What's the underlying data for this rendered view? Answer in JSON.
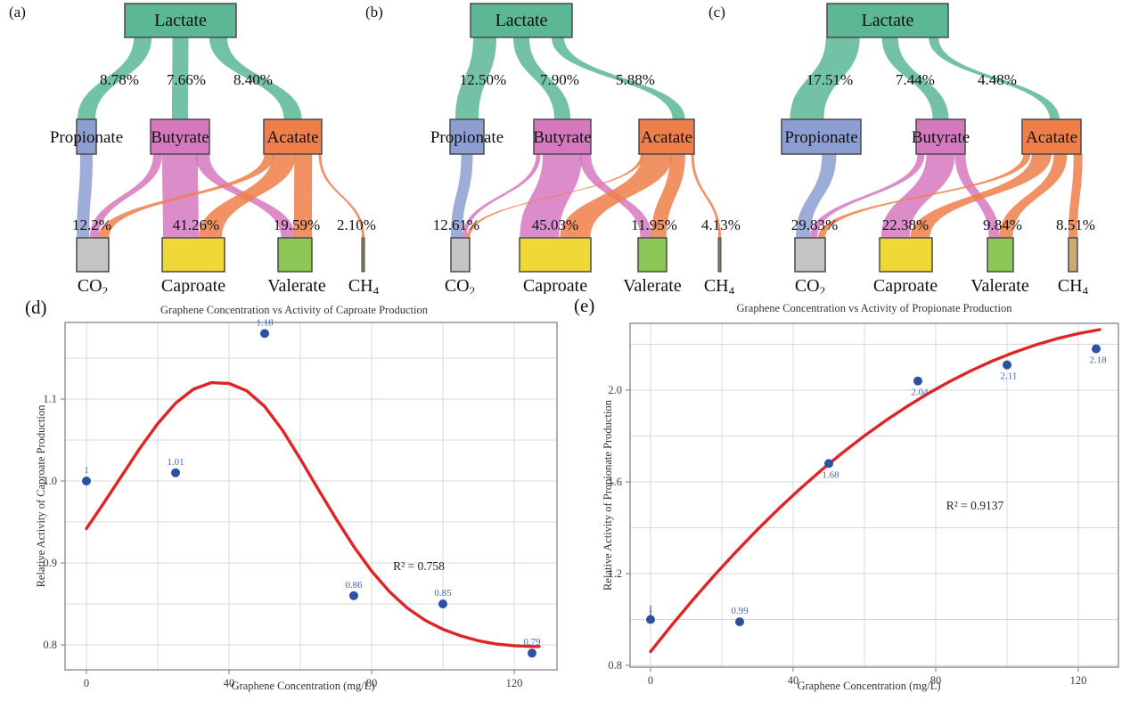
{
  "panel_letters": {
    "a": "(a)",
    "b": "(b)",
    "c": "(c)",
    "d": "(d)",
    "e": "(e)"
  },
  "colors": {
    "lactate": "#5cb795",
    "propionate": "#8d9ed2",
    "butyrate": "#d678be",
    "acetate": "#ef7f4a",
    "co2": "#c4c4c4",
    "caproate": "#f0d838",
    "valerate": "#8cc654",
    "ch4_thin": "#8f7a5c",
    "ch4_wide": "#cfa878",
    "node_border": "#4a4a4a",
    "sankey_text": "#111111",
    "point": "#2b51a3",
    "point_label": "#3f66b0",
    "curve": "#e02424",
    "grid": "#d8d8d8",
    "frame": "#8f8f8f",
    "axis_text": "#3c3c3c",
    "title_text": "#333333"
  },
  "chart_data": [
    {
      "type": "sankey",
      "panel": "(a)",
      "source": "Lactate",
      "middle_nodes": [
        {
          "label": "Propionate",
          "inflow_pct": "8.78%"
        },
        {
          "label": "Butyrate",
          "inflow_pct": "7.66%"
        },
        {
          "label": "Acatate",
          "inflow_pct": "8.40%"
        }
      ],
      "bottom_nodes": [
        {
          "label": "CO",
          "sub": "2",
          "total_pct": "12.2%"
        },
        {
          "label": "Caproate",
          "sub": "",
          "total_pct": "41.26%"
        },
        {
          "label": "Valerate",
          "sub": "",
          "total_pct": "19.59%"
        },
        {
          "label": "CH",
          "sub": "4",
          "total_pct": "2.10%"
        }
      ],
      "links": [
        [
          "Lactate",
          "Propionate"
        ],
        [
          "Lactate",
          "Butyrate"
        ],
        [
          "Lactate",
          "Acatate"
        ],
        [
          "Propionate",
          "CO2"
        ],
        [
          "Butyrate",
          "CO2"
        ],
        [
          "Butyrate",
          "Caproate"
        ],
        [
          "Butyrate",
          "Valerate"
        ],
        [
          "Acatate",
          "CO2"
        ],
        [
          "Acatate",
          "Caproate"
        ],
        [
          "Acatate",
          "Valerate"
        ],
        [
          "Acatate",
          "CH4"
        ]
      ]
    },
    {
      "type": "sankey",
      "panel": "(b)",
      "source": "Lactate",
      "middle_nodes": [
        {
          "label": "Propionate",
          "inflow_pct": "12.50%"
        },
        {
          "label": "Butyrate",
          "inflow_pct": "7.90%"
        },
        {
          "label": "Acatate",
          "inflow_pct": "5.88%"
        }
      ],
      "bottom_nodes": [
        {
          "label": "CO",
          "sub": "2",
          "total_pct": "12.61%"
        },
        {
          "label": "Caproate",
          "sub": "",
          "total_pct": "45.03%"
        },
        {
          "label": "Valerate",
          "sub": "",
          "total_pct": "11.95%"
        },
        {
          "label": "CH",
          "sub": "4",
          "total_pct": "4.13%"
        }
      ],
      "links": [
        [
          "Lactate",
          "Propionate"
        ],
        [
          "Lactate",
          "Butyrate"
        ],
        [
          "Lactate",
          "Acatate"
        ],
        [
          "Propionate",
          "CO2"
        ],
        [
          "Butyrate",
          "CO2"
        ],
        [
          "Butyrate",
          "Caproate"
        ],
        [
          "Butyrate",
          "Valerate"
        ],
        [
          "Acatate",
          "CO2"
        ],
        [
          "Acatate",
          "Caproate"
        ],
        [
          "Acatate",
          "Valerate"
        ],
        [
          "Acatate",
          "CH4"
        ]
      ]
    },
    {
      "type": "sankey",
      "panel": "(c)",
      "source": "Lactate",
      "middle_nodes": [
        {
          "label": "Propionate",
          "inflow_pct": "17.51%"
        },
        {
          "label": "Butyrate",
          "inflow_pct": "7.44%"
        },
        {
          "label": "Acatate",
          "inflow_pct": "4.48%"
        }
      ],
      "bottom_nodes": [
        {
          "label": "CO",
          "sub": "2",
          "total_pct": "29.83%"
        },
        {
          "label": "Caproate",
          "sub": "",
          "total_pct": "22.38%"
        },
        {
          "label": "Valerate",
          "sub": "",
          "total_pct": "9.84%"
        },
        {
          "label": "CH",
          "sub": "4",
          "total_pct": "8.51%"
        }
      ],
      "links": [
        [
          "Lactate",
          "Propionate"
        ],
        [
          "Lactate",
          "Butyrate"
        ],
        [
          "Lactate",
          "Acatate"
        ],
        [
          "Propionate",
          "CO2"
        ],
        [
          "Butyrate",
          "CO2"
        ],
        [
          "Butyrate",
          "Caproate"
        ],
        [
          "Butyrate",
          "Valerate"
        ],
        [
          "Acatate",
          "CO2"
        ],
        [
          "Acatate",
          "Caproate"
        ],
        [
          "Acatate",
          "Valerate"
        ],
        [
          "Acatate",
          "CH4"
        ]
      ]
    },
    {
      "type": "scatter",
      "panel": "(d)",
      "title": "Graphene Concentration vs Activity of Caproate Production",
      "xlabel": "Graphene Concentration (mg/L)",
      "ylabel": "Relative Activity of Caproate Production",
      "x": [
        0,
        25,
        50,
        75,
        100,
        125
      ],
      "y": [
        1,
        1.01,
        1.18,
        0.86,
        0.85,
        0.79
      ],
      "point_labels": [
        "1",
        "1.01",
        "1.18",
        "0.86",
        "0.85",
        "0.79"
      ],
      "annotation": "R² = 0.758",
      "x_ticks": [
        0,
        40,
        80,
        120
      ],
      "x_tick_labels": [
        "0",
        "40",
        "80",
        "120"
      ],
      "y_ticks": [
        0.8,
        0.9,
        1.0,
        1.1
      ],
      "y_tick_labels": [
        "0.8",
        "0.9",
        "1.0",
        "1.1"
      ],
      "xlim": [
        -6,
        133
      ],
      "ylim": [
        0.77,
        1.2
      ],
      "grid": true,
      "fit_curve": "red polynomial fit, peak near x=38 then declining"
    },
    {
      "type": "scatter",
      "panel": "(e)",
      "title": "Graphene Concentration vs Activity of Propionate Production",
      "xlabel": "Graphene Concentration (mg/L)",
      "ylabel": "Relative Activity of Propionate Production",
      "x": [
        0,
        25,
        50,
        75,
        100,
        125
      ],
      "y": [
        1,
        0.99,
        1.68,
        2.04,
        2.11,
        2.18
      ],
      "point_labels": [
        "1",
        "0.99",
        "1.68",
        "2.04",
        "2.11",
        "2.18"
      ],
      "annotation": "R² = 0.9137",
      "x_ticks": [
        0,
        40,
        80,
        120
      ],
      "x_tick_labels": [
        "0",
        "40",
        "80",
        "120"
      ],
      "y_ticks": [
        0.8,
        1.2,
        1.6,
        2.0
      ],
      "y_tick_labels": [
        "0.8",
        "1.2",
        "1.6",
        "2.0"
      ],
      "xlim": [
        -5.75,
        131
      ],
      "ylim": [
        0.79,
        2.29
      ],
      "grid": true,
      "fit_curve": "red saturating fit rising from ~0.86 to ~2.26"
    }
  ]
}
